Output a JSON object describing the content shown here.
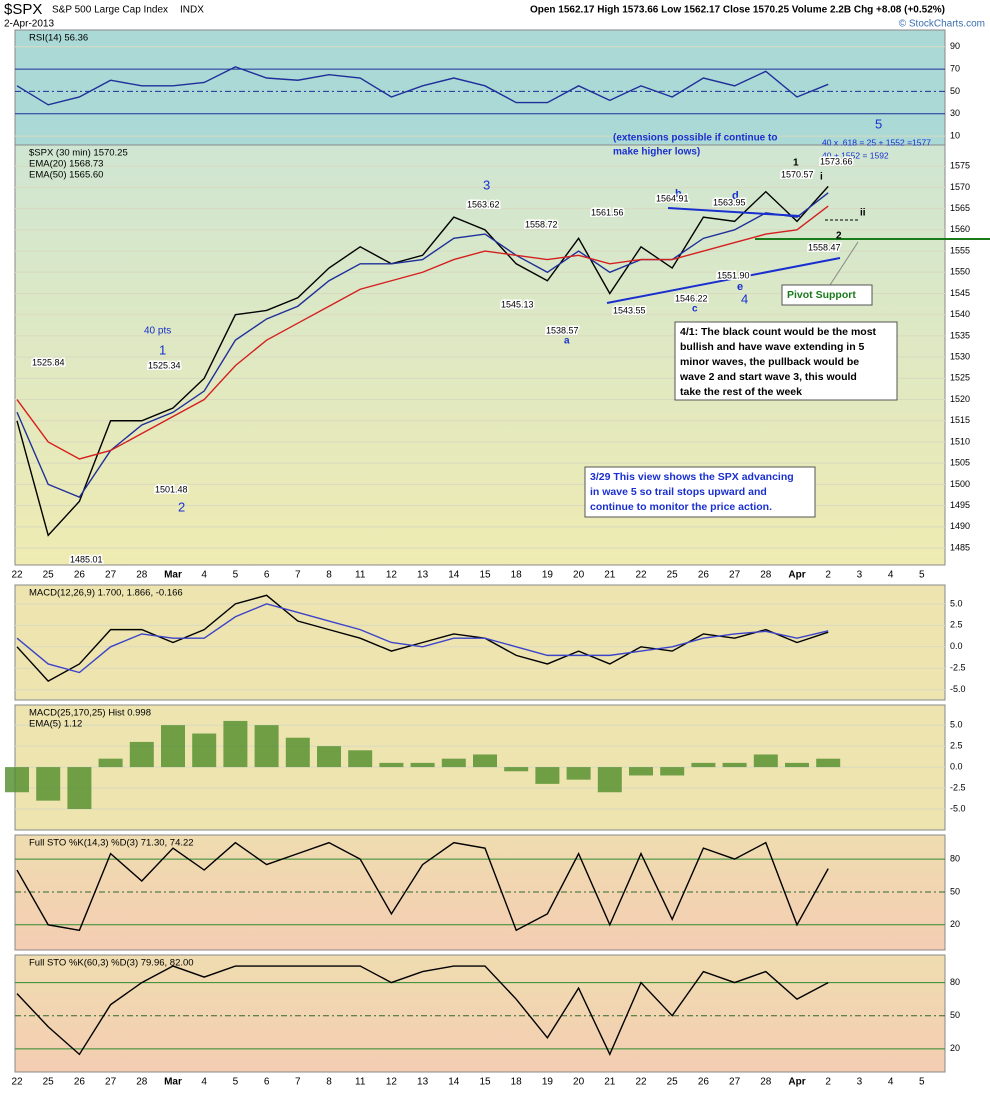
{
  "header": {
    "symbol": "$SPX",
    "name": "S&P 500 Large Cap Index",
    "exchange": "INDX",
    "date": "2-Apr-2013",
    "quote": "Open 1562.17  High 1573.66  Low 1562.17  Close 1570.25  Volume 2.2B  Chg +8.08 (+0.52%)",
    "copyright": "© StockCharts.com"
  },
  "chart_data": [
    {
      "type": "line",
      "legend": [
        "RSI(14) 56.36"
      ],
      "ylim": [
        2,
        105
      ],
      "yticks": [
        10,
        30,
        50,
        70,
        90
      ],
      "series": [
        {
          "color": "#1f2f9a",
          "values": [
            55,
            38,
            45,
            60,
            55,
            55,
            58,
            72,
            62,
            60,
            65,
            62,
            45,
            55,
            62,
            55,
            40,
            40,
            55,
            42,
            55,
            45,
            62,
            55,
            68,
            45,
            56.36,
            null,
            null,
            null
          ]
        }
      ]
    },
    {
      "type": "line",
      "legend": [
        "$SPX (30 min) 1570.25",
        "EMA(20) 1568.73",
        "EMA(50) 1565.60"
      ],
      "ylim": [
        1481,
        1580
      ],
      "yticks": [
        1485,
        1490,
        1495,
        1500,
        1505,
        1510,
        1515,
        1520,
        1525,
        1530,
        1535,
        1540,
        1545,
        1550,
        1555,
        1560,
        1565,
        1570,
        1575
      ],
      "categories": [
        "22",
        "25",
        "26",
        "27",
        "28",
        "Mar",
        "4",
        "5",
        "6",
        "7",
        "8",
        "11",
        "12",
        "13",
        "14",
        "15",
        "18",
        "19",
        "20",
        "21",
        "22",
        "25",
        "26",
        "27",
        "28",
        "Apr",
        "2",
        "3",
        "4",
        "5"
      ],
      "series": [
        {
          "color": "#000000",
          "values": [
            1515,
            1488,
            1496,
            1515,
            1515,
            1518,
            1525,
            1540,
            1541,
            1544,
            1551,
            1556,
            1552,
            1554,
            1563,
            1560,
            1552,
            1548,
            1558,
            1545,
            1556,
            1551,
            1563,
            1562,
            1569,
            1562,
            1570.25,
            null,
            null,
            null
          ]
        },
        {
          "color": "#1f2f9a",
          "values": [
            1517,
            1500,
            1497,
            1508,
            1514,
            1517,
            1522,
            1534,
            1539,
            1542,
            1548,
            1552,
            1552,
            1553,
            1558,
            1559,
            1554,
            1550,
            1555,
            1550,
            1553,
            1553,
            1558,
            1560,
            1564,
            1563,
            1568.73,
            null,
            null,
            null
          ]
        },
        {
          "color": "#d42020",
          "values": [
            1520,
            1510,
            1506,
            1508,
            1512,
            1516,
            1520,
            1528,
            1534,
            1538,
            1542,
            1546,
            1548,
            1550,
            1553,
            1555,
            1554,
            1553,
            1554,
            1552,
            1553,
            1553,
            1555,
            1557,
            1559,
            1560,
            1565.6,
            null,
            null,
            null
          ]
        }
      ]
    },
    {
      "type": "line",
      "legend": [
        "MACD(12,26,9) 1.700, 1.866, -0.166"
      ],
      "ylim": [
        -6.2,
        7.2
      ],
      "yticks": [
        {
          "value": 5,
          "label": "5.0"
        },
        2.5,
        {
          "value": 0,
          "label": "0.0"
        },
        -2.5,
        {
          "value": -5,
          "label": "-5.0"
        }
      ],
      "series": [
        {
          "color": "#000000",
          "values": [
            0,
            -4,
            -2,
            2,
            2,
            0.5,
            2,
            5,
            6,
            3,
            2,
            1,
            -0.5,
            0.5,
            1.5,
            1,
            -1,
            -2,
            -0.5,
            -2,
            0,
            -0.5,
            1.5,
            1,
            2,
            0.5,
            1.7,
            null,
            null,
            null
          ]
        },
        {
          "color": "#3d44c8",
          "values": [
            1,
            -2,
            -3,
            0,
            1.5,
            1,
            1,
            3.5,
            5,
            4,
            3,
            2,
            0.5,
            0,
            1,
            1,
            0,
            -1,
            -1,
            -1,
            -0.5,
            0,
            1,
            1.5,
            1.8,
            1,
            1.866,
            null,
            null,
            null
          ]
        }
      ]
    },
    {
      "type": "bar",
      "legend": [
        "MACD(25,170,25) Hist 0.998",
        "EMA(5) 1.12"
      ],
      "ylim": [
        -7.5,
        7.4
      ],
      "color": "#4f8c2a",
      "yticks": [
        {
          "value": 5,
          "label": "5.0"
        },
        2.5,
        {
          "value": 0,
          "label": "0.0"
        },
        -2.5,
        {
          "value": -5,
          "label": "-5.0"
        }
      ],
      "values": [
        -3,
        -4,
        -5,
        1,
        3,
        5,
        4,
        5.5,
        5,
        3.5,
        2.5,
        2,
        0.5,
        0.5,
        1,
        1.5,
        -0.5,
        -2,
        -1.5,
        -3,
        -1,
        -1,
        0.5,
        0.5,
        1.5,
        0.5,
        0.998,
        null,
        null,
        null
      ]
    },
    {
      "type": "line",
      "legend": [
        "Full STO %K(14,3) %D(3) 71.30, 74.22"
      ],
      "ylim": [
        -3,
        102
      ],
      "yticks": [
        20,
        50,
        80
      ],
      "series": [
        {
          "color": "#000000",
          "values": [
            70,
            20,
            15,
            85,
            60,
            90,
            70,
            95,
            75,
            85,
            95,
            80,
            30,
            75,
            95,
            90,
            15,
            30,
            85,
            20,
            85,
            25,
            90,
            80,
            95,
            20,
            71.3,
            null,
            null,
            null
          ]
        }
      ]
    },
    {
      "type": "line",
      "legend": [
        "Full STO %K(60,3) %D(3) 79.96, 82.00"
      ],
      "ylim": [
        -1,
        105
      ],
      "yticks": [
        20,
        50,
        80
      ],
      "categories": [
        "22",
        "25",
        "26",
        "27",
        "28",
        "Mar",
        "4",
        "5",
        "6",
        "7",
        "8",
        "11",
        "12",
        "13",
        "14",
        "15",
        "18",
        "19",
        "20",
        "21",
        "22",
        "25",
        "26",
        "27",
        "28",
        "Apr",
        "2",
        "3",
        "4",
        "5"
      ],
      "series": [
        {
          "color": "#000000",
          "values": [
            70,
            40,
            15,
            60,
            80,
            95,
            85,
            95,
            95,
            95,
            95,
            95,
            80,
            90,
            95,
            95,
            65,
            30,
            75,
            15,
            80,
            50,
            90,
            80,
            90,
            65,
            79.96,
            null,
            null,
            null
          ]
        }
      ]
    }
  ],
  "annotations": [
    "5",
    "(extensions possible if continue to",
    "make higher lows)",
    "40 x .618 = 25 + 1552 =1577",
    "40 + 1552 = 1592",
    "1",
    "1570.57",
    "1573.66",
    "i",
    "ii",
    "2",
    "1558.47",
    "3",
    "1563.62",
    "1558.72",
    "1561.56",
    "b",
    "1564.91",
    "d",
    "1563.95",
    "1545.13",
    "1538.57",
    "a",
    "1543.55",
    "1546.22",
    "c",
    "1551.90",
    "e",
    "4",
    "40 pts",
    "1",
    "1525.34",
    "1525.84",
    "1501.48",
    "2",
    "1485.01"
  ],
  "boxes": [
    {
      "lines": [
        "Pivot Support"
      ]
    },
    {
      "lines": [
        "4/1: The black count would be the most",
        "bullish and have wave extending in 5",
        "minor waves, the pullback would be",
        "wave 2 and start wave 3, this would",
        "take the rest of the week"
      ]
    },
    {
      "lines": [
        "3/29 This view shows the SPX advancing",
        "in wave 5 so trail stops upward and",
        "continue to monitor the price action."
      ]
    }
  ]
}
